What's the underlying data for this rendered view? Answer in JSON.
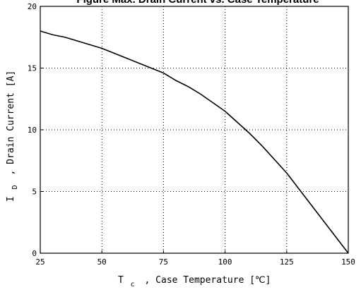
{
  "chart_data": {
    "type": "line",
    "title": "Figure  Max. Drain Current vs. Case Temperature",
    "xlabel_symbol": "T",
    "xlabel_subscript": "c",
    "xlabel_rest": ", Case Temperature  [℃]",
    "ylabel_symbol": "I",
    "ylabel_subscript": "D",
    "ylabel_rest": ", Drain Current  [A]",
    "xlim": [
      25,
      150
    ],
    "ylim": [
      0,
      20
    ],
    "x_ticks": [
      25,
      50,
      75,
      100,
      125,
      150
    ],
    "y_ticks": [
      0,
      5,
      10,
      15,
      20
    ],
    "grid": true,
    "series": [
      {
        "x": [
          25,
          30,
          35,
          40,
          45,
          50,
          55,
          60,
          65,
          70,
          75,
          80,
          85,
          90,
          95,
          100,
          105,
          110,
          115,
          120,
          125,
          130,
          135,
          140,
          145,
          150
        ],
        "y": [
          18.0,
          17.7,
          17.5,
          17.2,
          16.9,
          16.6,
          16.2,
          15.8,
          15.4,
          15.0,
          14.6,
          14.0,
          13.5,
          12.9,
          12.2,
          11.5,
          10.6,
          9.7,
          8.7,
          7.6,
          6.5,
          5.2,
          3.9,
          2.6,
          1.3,
          0.0
        ],
        "color": "#000000"
      }
    ]
  }
}
